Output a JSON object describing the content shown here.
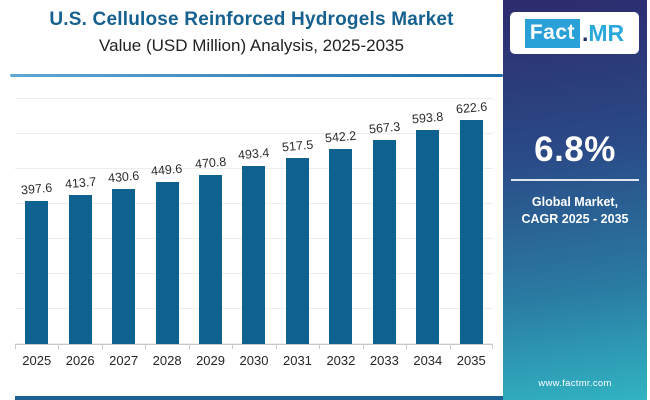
{
  "header": {
    "title": "U.S. Cellulose Reinforced Hydrogels Market",
    "subtitle": "Value (USD Million) Analysis, 2025-2035"
  },
  "logo": {
    "fact": "Fact",
    "dot": ".",
    "mr": "MR"
  },
  "chart_data": {
    "type": "bar",
    "title": "U.S. Cellulose Reinforced Hydrogels Market",
    "subtitle": "Value (USD Million) Analysis, 2025-2035",
    "categories": [
      "2025",
      "2026",
      "2027",
      "2028",
      "2029",
      "2030",
      "2031",
      "2032",
      "2033",
      "2034",
      "2035"
    ],
    "values": [
      397.6,
      413.7,
      430.6,
      449.6,
      470.8,
      493.4,
      517.5,
      542.2,
      567.3,
      593.8,
      622.6
    ],
    "unit": "USD Million",
    "xlabel": "",
    "ylabel": "Value (USD Million)",
    "ylim": [
      0,
      690
    ],
    "grid": "faint-horizontal",
    "legend": "none",
    "data_labels": "above-bar"
  },
  "sidebar": {
    "cagr_value": "6.8%",
    "cagr_caption": [
      "Global Market,",
      "CAGR 2025 - 2035"
    ],
    "website": "www.factmr.com"
  },
  "colors": {
    "bar": "#0f618f",
    "title": "#16618f",
    "accent_rule": "#2b7ab5",
    "bottom_rule": "#1d6093",
    "sidebar_top": "#2d2b6e",
    "sidebar_bottom": "#31b3c2",
    "logo_cyan": "#2aa0d8"
  }
}
